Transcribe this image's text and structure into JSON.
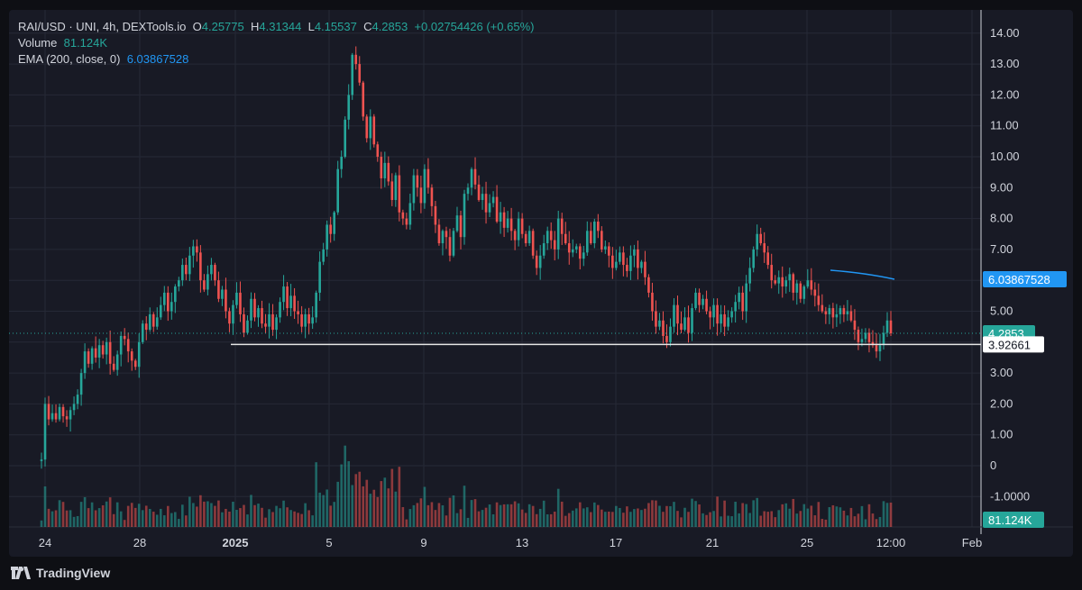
{
  "header": {
    "symbol": "RAI/USD · UNI, 4h, DEXTools.io",
    "open_label": "O",
    "open": "4.25775",
    "high_label": "H",
    "high": "4.31344",
    "low_label": "L",
    "low": "4.15537",
    "close_label": "C",
    "close": "4.2853",
    "change": "+0.02754426 (+0.65%)",
    "volume_label": "Volume",
    "volume": "81.124K",
    "ema_label": "EMA (200, close, 0)",
    "ema": "6.03867528"
  },
  "brand": "TradingView",
  "colors": {
    "up": "#26a69a",
    "down": "#ef5350",
    "ema": "#2196f3",
    "background": "#181a25"
  },
  "chart_data": {
    "type": "candlestick",
    "x_ticks": [
      "24",
      "28",
      "2025",
      "5",
      "9",
      "13",
      "17",
      "21",
      "25",
      "12:00",
      "Feb"
    ],
    "y_ticks": [
      "14.00",
      "13.00",
      "12.00",
      "11.00",
      "10.00",
      "9.00",
      "8.00",
      "7.00",
      "6.00",
      "5.00",
      "4.00",
      "3.00",
      "2.00",
      "1.00",
      "0",
      "-1.0000"
    ],
    "ylim": [
      -2.0,
      14.6
    ],
    "price_labels": {
      "last": "4.2853",
      "ema": "6.03867528",
      "level": "3.92661",
      "volume": "81.124K"
    },
    "horizontal_level": 3.92661,
    "last_price": 4.2853,
    "closes": [
      0.2,
      2.0,
      1.5,
      1.7,
      1.5,
      1.9,
      1.6,
      1.5,
      1.8,
      2.0,
      2.3,
      3.0,
      3.7,
      3.3,
      3.8,
      3.5,
      3.9,
      3.6,
      4.0,
      3.3,
      3.1,
      3.6,
      4.2,
      4.1,
      3.7,
      3.4,
      3.2,
      4.0,
      4.6,
      4.4,
      4.9,
      4.5,
      4.8,
      5.2,
      5.6,
      5.0,
      5.3,
      5.8,
      6.0,
      6.5,
      6.2,
      6.8,
      7.1,
      6.9,
      6.0,
      5.7,
      6.2,
      6.5,
      6.0,
      5.4,
      5.7,
      5.0,
      4.6,
      5.2,
      5.6,
      4.9,
      4.3,
      4.7,
      5.4,
      4.8,
      5.1,
      4.6,
      4.5,
      4.9,
      4.4,
      4.8,
      5.3,
      5.8,
      5.1,
      5.5,
      5.0,
      4.9,
      4.5,
      4.9,
      4.6,
      4.8,
      5.6,
      6.6,
      7.0,
      7.8,
      7.5,
      8.2,
      9.6,
      10.0,
      11.2,
      12.0,
      13.3,
      13.0,
      12.4,
      11.3,
      10.6,
      11.3,
      10.4,
      10.0,
      9.3,
      9.8,
      9.2,
      8.6,
      9.4,
      8.2,
      8.0,
      7.8,
      8.5,
      9.4,
      9.0,
      8.5,
      9.6,
      9.0,
      8.4,
      7.8,
      7.2,
      7.6,
      7.4,
      6.8,
      7.6,
      8.1,
      7.4,
      8.8,
      9.0,
      9.6,
      9.1,
      8.6,
      8.8,
      8.2,
      8.5,
      8.7,
      7.9,
      8.2,
      7.7,
      8.0,
      7.6,
      7.3,
      8.0,
      7.5,
      7.2,
      7.6,
      6.8,
      6.4,
      6.8,
      7.2,
      7.6,
      7.3,
      7.0,
      8.0,
      7.5,
      7.2,
      6.9,
      7.0,
      7.1,
      6.7,
      6.9,
      7.6,
      7.2,
      7.9,
      7.6,
      7.0,
      7.1,
      6.8,
      6.4,
      6.6,
      6.9,
      6.5,
      6.3,
      6.8,
      7.0,
      6.4,
      6.6,
      6.1,
      5.6,
      5.0,
      4.5,
      4.7,
      4.2,
      4.0,
      4.5,
      5.2,
      4.6,
      4.4,
      4.8,
      4.3,
      5.1,
      5.6,
      5.2,
      5.4,
      5.0,
      4.8,
      5.2,
      4.6,
      4.9,
      4.5,
      4.8,
      5.0,
      5.3,
      5.6,
      5.0,
      5.9,
      6.4,
      7.0,
      7.5,
      7.2,
      6.9,
      6.5,
      6.0,
      5.9,
      6.1,
      5.8,
      6.0,
      6.2,
      5.6,
      5.9,
      5.4,
      5.8,
      6.0,
      5.7,
      5.5,
      5.2,
      5.0,
      4.9,
      5.1,
      4.8,
      4.9,
      5.1,
      4.9,
      5.0,
      4.7,
      4.4,
      4.0,
      4.1,
      4.3,
      4.0,
      3.9,
      3.7,
      3.9,
      4.3,
      4.7,
      4.2853
    ]
  }
}
